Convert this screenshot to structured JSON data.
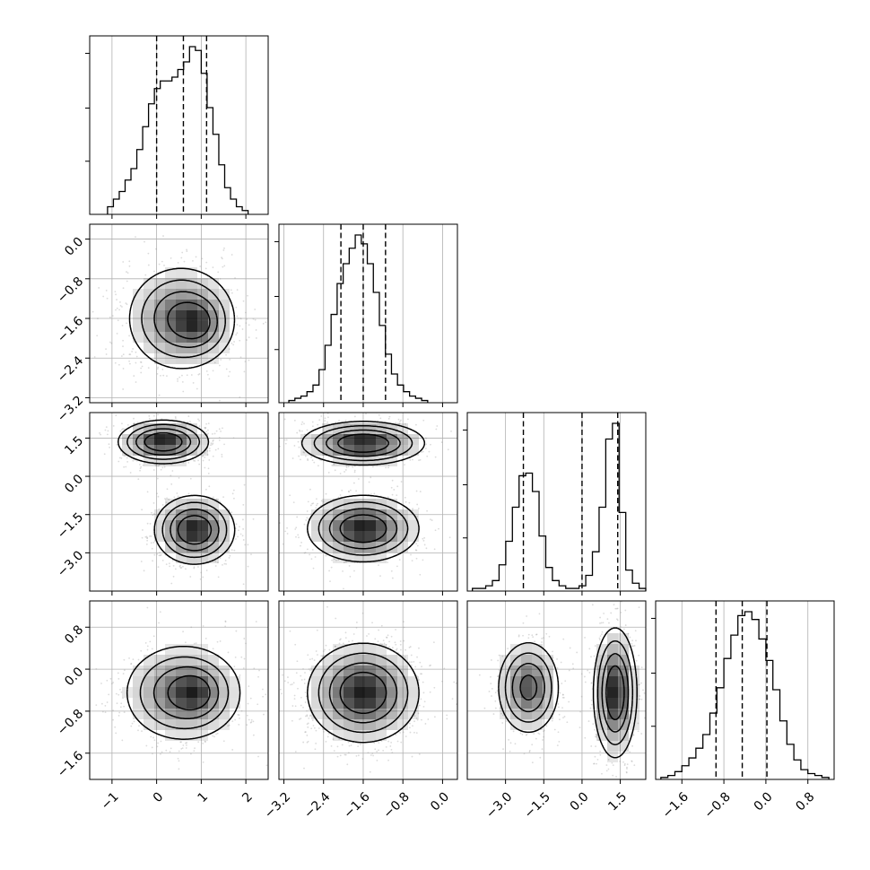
{
  "chart_data": {
    "type": "corner",
    "n_params": 4,
    "axis_labels": [
      "",
      "",
      "",
      ""
    ],
    "ranges": [
      [
        -1.5,
        2.5
      ],
      [
        -3.3,
        0.3
      ],
      [
        -4.5,
        2.5
      ],
      [
        -2.1,
        1.3
      ]
    ],
    "ticks": [
      {
        "values": [
          -1,
          0,
          1,
          2
        ],
        "labels": [
          "−1",
          "0",
          "1",
          "2"
        ]
      },
      {
        "values": [
          -3.2,
          -2.4,
          -1.6,
          -0.8,
          0.0
        ],
        "labels": [
          "−3.2",
          "−2.4",
          "−1.6",
          "−0.8",
          "0.0"
        ]
      },
      {
        "values": [
          -3.0,
          -1.5,
          0.0,
          1.5
        ],
        "labels": [
          "−3.0",
          "−1.5",
          "0.0",
          "1.5"
        ]
      },
      {
        "values": [
          -1.6,
          -0.8,
          0.0,
          0.8
        ],
        "labels": [
          "−1.6",
          "−0.8",
          "0.0",
          "0.8"
        ]
      }
    ],
    "quantiles": [
      [
        0.0,
        0.6,
        1.12
      ],
      [
        -2.05,
        -1.6,
        -1.15
      ],
      [
        -2.3,
        0.0,
        1.4
      ],
      [
        -0.95,
        -0.45,
        0.02
      ]
    ],
    "histograms": [
      {
        "edges_range": [
          -1.1,
          2.05
        ],
        "counts": [
          2,
          4,
          6,
          9,
          12,
          17,
          23,
          29,
          33,
          35,
          35,
          36,
          38,
          40,
          44,
          43,
          37,
          28,
          21,
          13,
          7,
          4,
          2,
          1
        ]
      },
      {
        "edges_range": [
          -3.1,
          -0.3
        ],
        "counts": [
          1,
          2,
          3,
          5,
          8,
          15,
          26,
          40,
          54,
          63,
          70,
          76,
          72,
          63,
          50,
          35,
          22,
          13,
          8,
          5,
          3,
          2,
          1
        ]
      },
      {
        "edges_range": [
          -4.3,
          2.5
        ],
        "counts": [
          1,
          1,
          2,
          4,
          10,
          19,
          32,
          44,
          45,
          38,
          21,
          9,
          4,
          2,
          1,
          1,
          2,
          6,
          15,
          32,
          58,
          64,
          30,
          8,
          3,
          1
        ]
      },
      {
        "edges_range": [
          -2.0,
          1.2
        ],
        "counts": [
          1,
          2,
          4,
          7,
          11,
          16,
          23,
          34,
          47,
          62,
          74,
          84,
          86,
          82,
          72,
          61,
          46,
          30,
          18,
          10,
          5,
          3,
          2,
          1
        ]
      }
    ],
    "pair_modes": [
      {
        "row": 1,
        "col": 0,
        "modes": [
          {
            "mx": 0.55,
            "my": -1.6,
            "sx": 0.55,
            "sy": 0.48,
            "w": 1.0
          },
          {
            "mx": 0.95,
            "my": -1.7,
            "sx": 0.3,
            "sy": 0.28,
            "w": 0.55
          }
        ]
      },
      {
        "row": 2,
        "col": 0,
        "modes": [
          {
            "mx": 0.15,
            "my": 1.35,
            "sx": 0.45,
            "sy": 0.38,
            "w": 1.0
          },
          {
            "mx": 0.85,
            "my": -2.1,
            "sx": 0.4,
            "sy": 0.6,
            "w": 1.0
          }
        ]
      },
      {
        "row": 2,
        "col": 1,
        "modes": [
          {
            "mx": -1.6,
            "my": 1.3,
            "sx": 0.55,
            "sy": 0.38,
            "w": 1.0
          },
          {
            "mx": -1.6,
            "my": -2.05,
            "sx": 0.5,
            "sy": 0.58,
            "w": 1.0
          }
        ]
      },
      {
        "row": 3,
        "col": 0,
        "modes": [
          {
            "mx": 0.6,
            "my": -0.45,
            "sx": 0.6,
            "sy": 0.42,
            "w": 1.0
          },
          {
            "mx": 0.9,
            "my": -0.45,
            "sx": 0.3,
            "sy": 0.25,
            "w": 0.45
          }
        ]
      },
      {
        "row": 3,
        "col": 1,
        "modes": [
          {
            "mx": -1.6,
            "my": -0.45,
            "sx": 0.5,
            "sy": 0.42,
            "w": 1.0
          }
        ]
      },
      {
        "row": 3,
        "col": 2,
        "modes": [
          {
            "mx": -2.1,
            "my": -0.35,
            "sx": 0.55,
            "sy": 0.4,
            "w": 1.0
          },
          {
            "mx": 1.3,
            "my": -0.45,
            "sx": 0.38,
            "sy": 0.55,
            "w": 1.3
          }
        ]
      }
    ],
    "contour_levels": [
      0.65,
      0.4,
      0.2,
      0.08
    ],
    "colors": {
      "line": "#000000",
      "grid": "#b0b0b0",
      "points": "#999999",
      "density": "#000000"
    }
  }
}
